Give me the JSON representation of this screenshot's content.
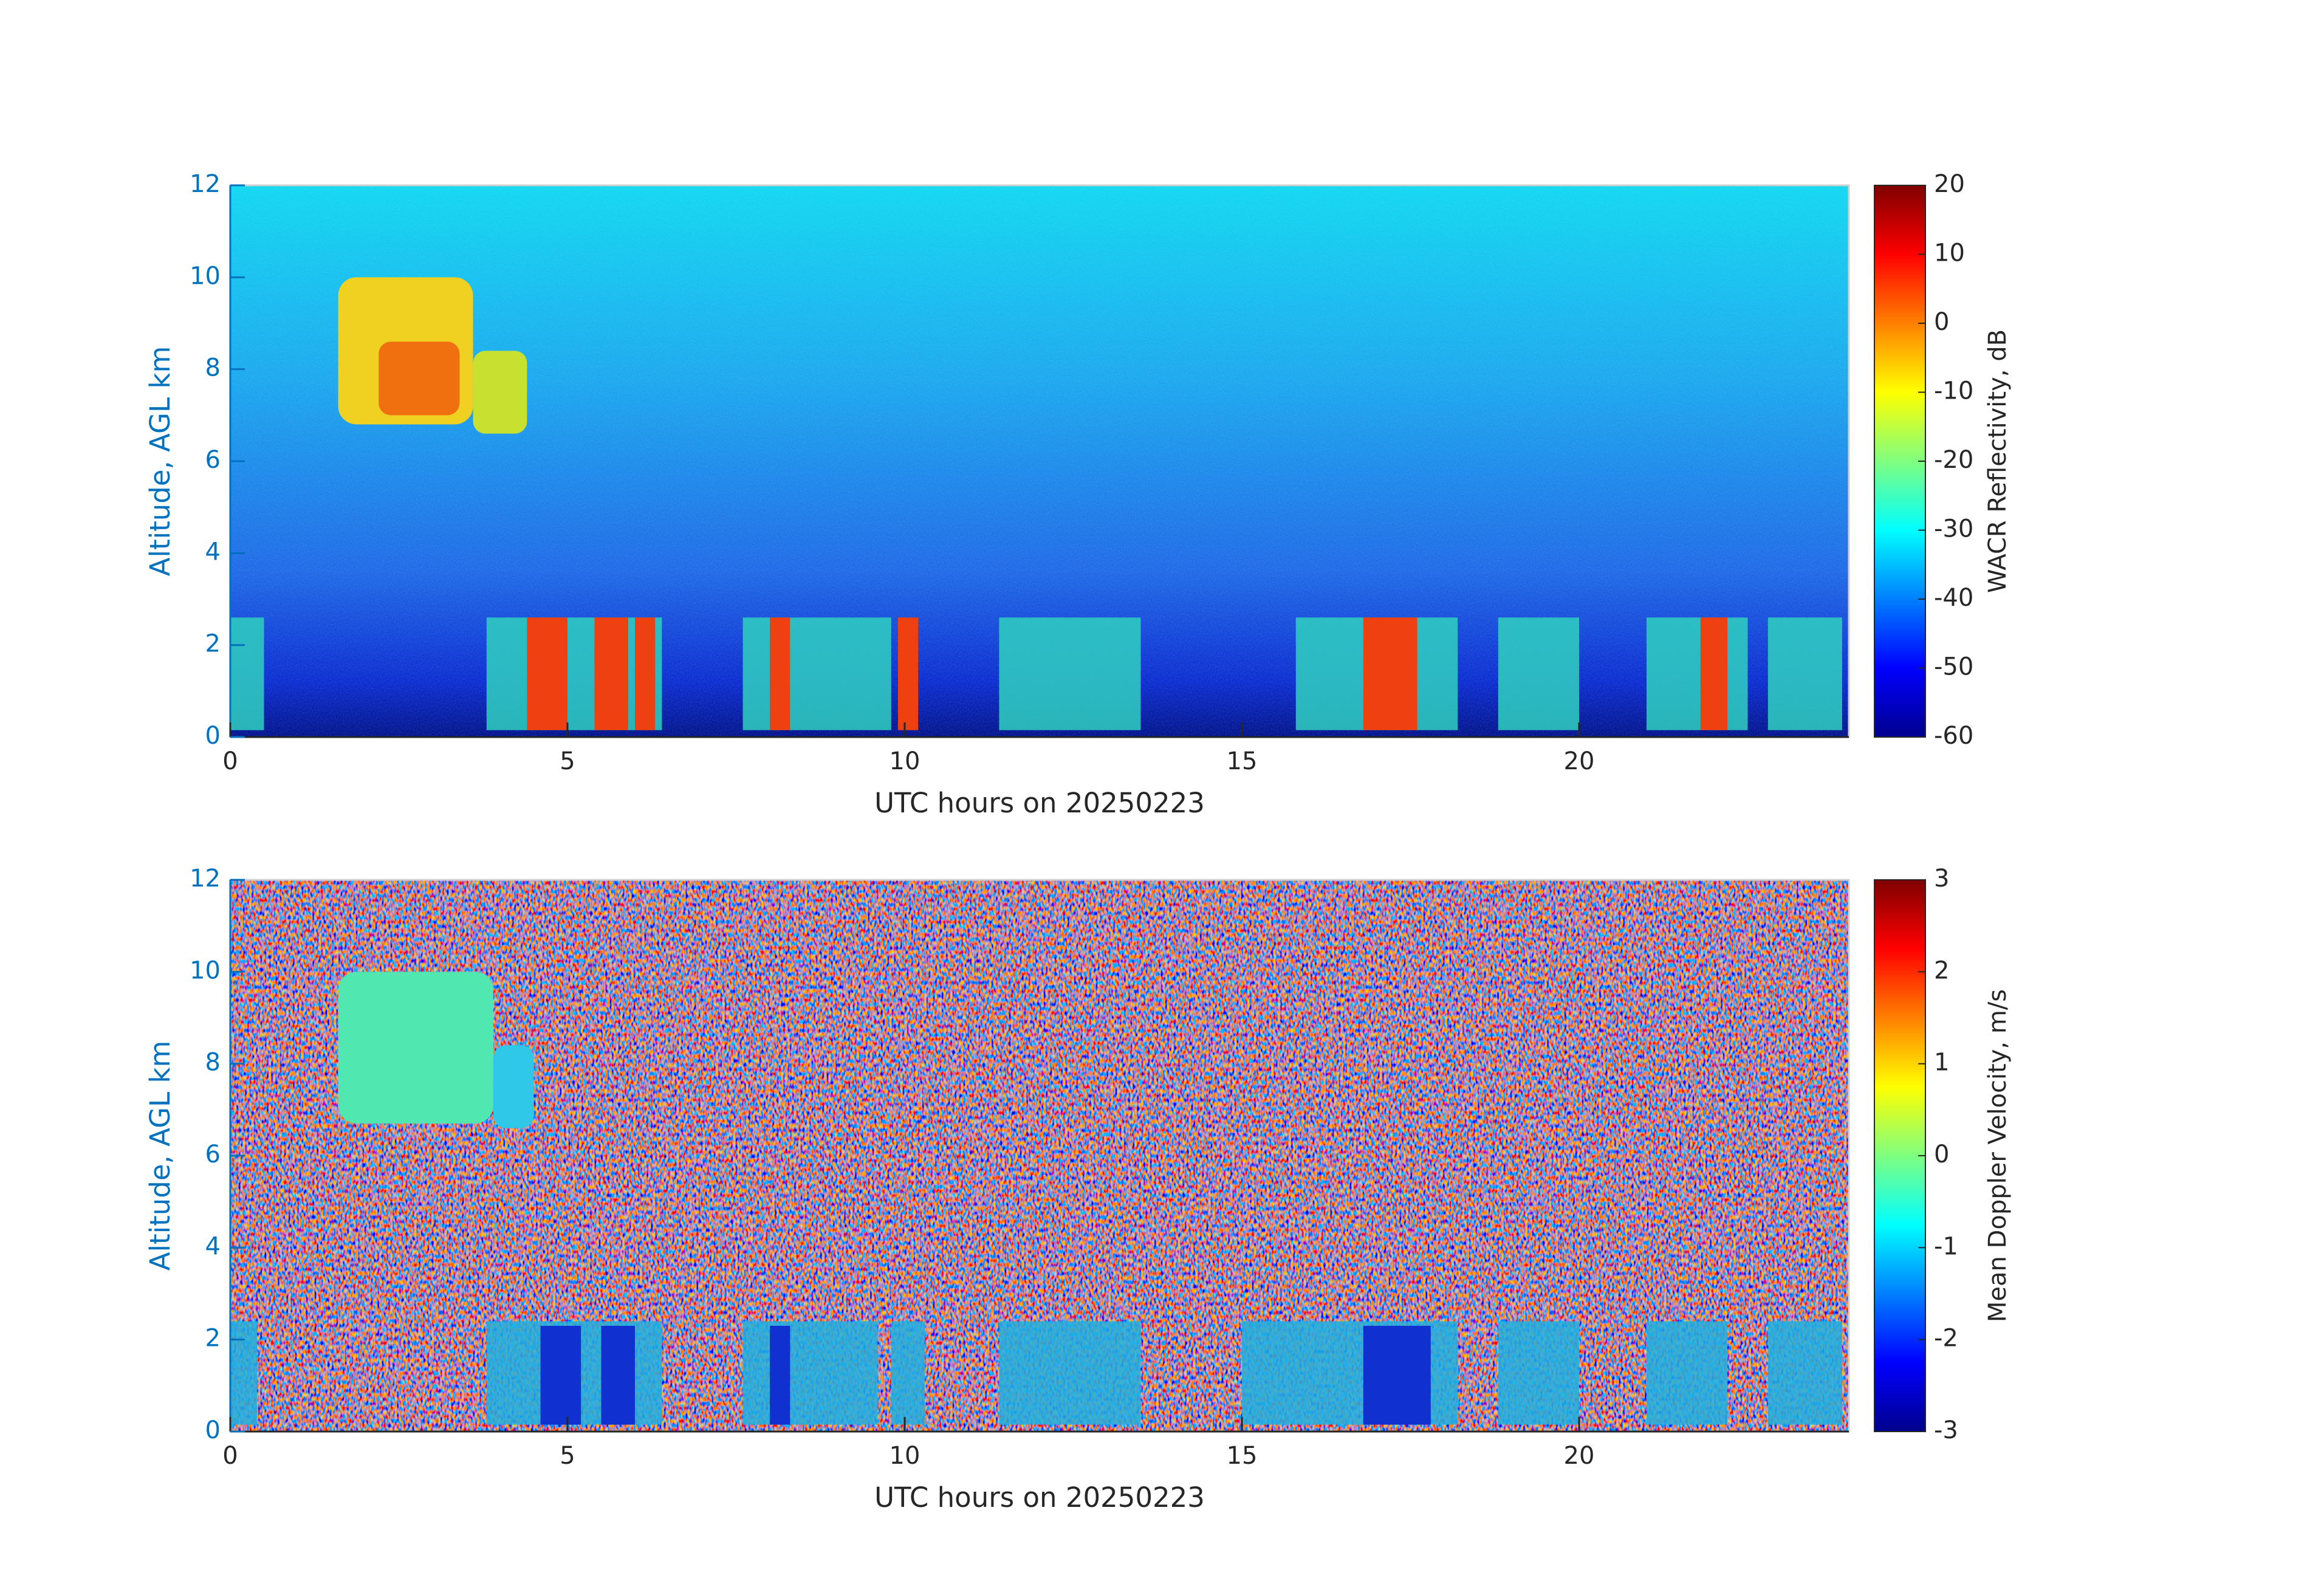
{
  "chart_data": [
    {
      "type": "heatmap",
      "xlabel": "UTC hours on 20250223",
      "ylabel": "Altitude, AGL km",
      "xlim": [
        0,
        24
      ],
      "xticks": [
        0,
        5,
        10,
        15,
        20
      ],
      "ylim": [
        0,
        12
      ],
      "yticks": [
        0,
        2,
        4,
        6,
        8,
        10,
        12
      ],
      "colorbar_label": "WACR Reflectivity, dB",
      "clim": [
        -60,
        20
      ],
      "cticks": [
        -60,
        -50,
        -40,
        -30,
        -20,
        -10,
        0,
        10,
        20
      ],
      "colormap": "jet"
    },
    {
      "type": "heatmap",
      "xlabel": "UTC hours on 20250223",
      "ylabel": "Altitude, AGL km",
      "xlim": [
        0,
        24
      ],
      "xticks": [
        0,
        5,
        10,
        15,
        20
      ],
      "ylim": [
        0,
        12
      ],
      "yticks": [
        0,
        2,
        4,
        6,
        8,
        10,
        12
      ],
      "colorbar_label": "Mean Doppler Velocity, m/s",
      "clim": [
        -3,
        3
      ],
      "cticks": [
        -3,
        -2,
        -1,
        0,
        1,
        2,
        3
      ],
      "colormap": "jet"
    }
  ]
}
